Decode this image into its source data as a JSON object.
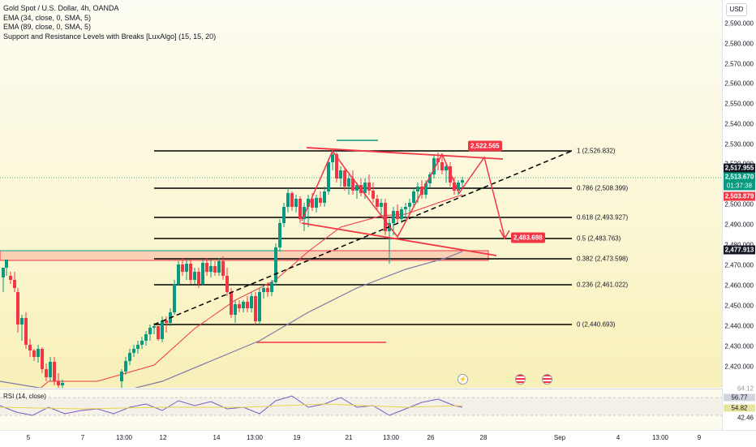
{
  "legend": {
    "symbol": "Gold Spot / U.S. Dollar, 4h, OANDA",
    "ema1": "EMA (34, close, 0, SMA, 5)",
    "ema2": "EMA (89, close, 0, SMA, 5)",
    "indicator": "Support and Resistance Levels with Breaks [LuxAlgo] (15, 15, 20)"
  },
  "currency": "USD",
  "price_ticks": [
    "2,590.000",
    "2,580.000",
    "2,570.000",
    "2,560.000",
    "2,550.000",
    "2,540.000",
    "2,530.000",
    "2,520.000",
    "2,500.000",
    "2,490.000",
    "2,480.000",
    "2,470.000",
    "2,460.000",
    "2,450.000",
    "2,440.000",
    "2,430.000",
    "2,420.000"
  ],
  "price_tags": {
    "current": "2,517.955",
    "last": "2,513.670",
    "countdown": "01:37:38",
    "ema34": "2,503.879",
    "ema89": "2,477.913"
  },
  "fib_levels": [
    {
      "label": "1 (2,526.832)",
      "price": 2526.832
    },
    {
      "label": "0.786 (2,508.399)",
      "price": 2508.399
    },
    {
      "label": "0.618 (2,493.927)",
      "price": 2493.927
    },
    {
      "label": "0.5 (2,483.763)",
      "price": 2483.763
    },
    {
      "label": "0.382 (2,473.598)",
      "price": 2473.598
    },
    {
      "label": "0.236 (2,461.022)",
      "price": 2461.022
    },
    {
      "label": "0 (2,440.693)",
      "price": 2440.693
    }
  ],
  "callouts": {
    "target_up": "2,522.565",
    "target_down": "2,483.698"
  },
  "rsi": {
    "title": "RSI (14, close)",
    "ticks": [
      "64.12",
      "42.46"
    ],
    "value": "56.77",
    "ma": "54.82"
  },
  "time_labels": [
    "5",
    "7",
    "13:00",
    "12",
    "14",
    "13:00",
    "19",
    "21",
    "13:00",
    "26",
    "28",
    "Sep",
    "4",
    "13:00",
    "9"
  ],
  "colors": {
    "up": "#089981",
    "down": "#f23645",
    "ema34": "#f23645",
    "ema89": "#7e78a8",
    "fib": "#000000",
    "accent": "#f23645"
  }
}
